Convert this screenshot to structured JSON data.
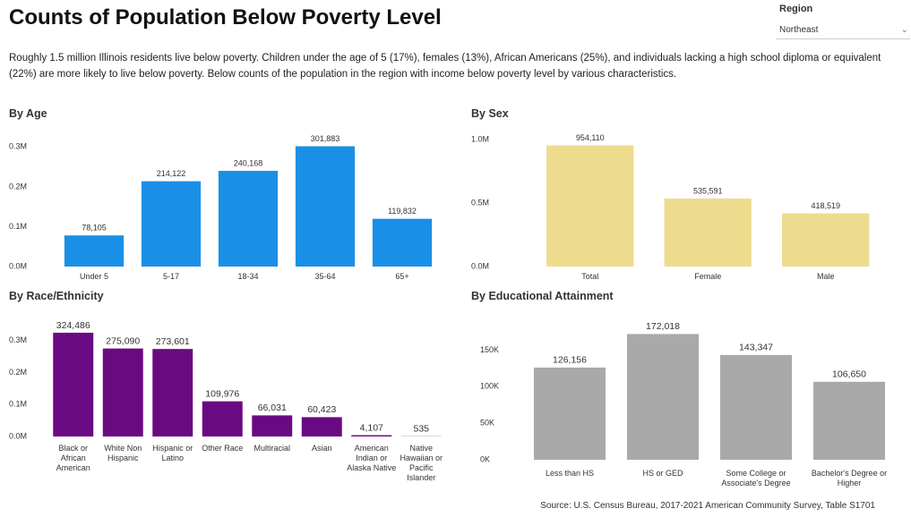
{
  "title": "Counts of Population Below Poverty Level",
  "description": "Roughly 1.5 million Illinois residents live below poverty. Children under the age of 5 (17%), females (13%), African Americans (25%), and individuals lacking a high school diploma or equivalent (22%) are more likely to live below poverty.  Below counts of the population in the region with income below poverty level by various characteristics.",
  "filter": {
    "label": "Region",
    "value": "Northeast"
  },
  "source": "Source: U.S. Census Bureau, 2017-2021 American Community Survey, Table S1701",
  "chart_data": [
    {
      "type": "bar",
      "title": "By Age",
      "categories": [
        "Under 5",
        "5-17",
        "18-34",
        "35-64",
        "65+"
      ],
      "values": [
        78105,
        214122,
        240168,
        301883,
        119832
      ],
      "value_labels": [
        "78,105",
        "214,122",
        "240,168",
        "301,883",
        "119,832"
      ],
      "color": "#1a8fe6",
      "ylim": [
        0,
        330000
      ],
      "yticks": [
        {
          "value": 0,
          "label": "0.0M"
        },
        {
          "value": 100000,
          "label": "0.1M"
        },
        {
          "value": 200000,
          "label": "0.2M"
        },
        {
          "value": 300000,
          "label": "0.3M"
        }
      ],
      "grid": false
    },
    {
      "type": "bar",
      "title": "By Sex",
      "categories": [
        "Total",
        "Female",
        "Male"
      ],
      "values": [
        954110,
        535591,
        418519
      ],
      "value_labels": [
        "954,110",
        "535,591",
        "418,519"
      ],
      "color": "#eedc8e",
      "ylim": [
        0,
        1000000
      ],
      "yticks": [
        {
          "value": 0,
          "label": "0.0M"
        },
        {
          "value": 500000,
          "label": "0.5M"
        },
        {
          "value": 1000000,
          "label": "1.0M"
        }
      ],
      "grid": false
    },
    {
      "type": "bar",
      "title": "By Race/Ethnicity",
      "categories": [
        "Black or African American",
        "White Non Hispanic",
        "Hispanic or Latino",
        "Other Race",
        "Multiracial",
        "Asian",
        "American Indian or Alaska Native",
        "Native Hawaiian or Pacific Islander"
      ],
      "values": [
        324486,
        275090,
        273601,
        109976,
        66031,
        60423,
        4107,
        535
      ],
      "value_labels": [
        "324,486",
        "275,090",
        "273,601",
        "109,976",
        "66,031",
        "60,423",
        "4,107",
        "535"
      ],
      "color": "#6a0a82",
      "ylim": [
        0,
        330000
      ],
      "yticks": [
        {
          "value": 0,
          "label": "0.0M"
        },
        {
          "value": 100000,
          "label": "0.1M"
        },
        {
          "value": 200000,
          "label": "0.2M"
        },
        {
          "value": 300000,
          "label": "0.3M"
        }
      ],
      "grid": false
    },
    {
      "type": "bar",
      "title": "By Educational Attainment",
      "categories": [
        "Less than HS",
        "HS or GED",
        "Some College or Associate's Degree",
        "Bachelor's Degree or Higher"
      ],
      "values": [
        126156,
        172018,
        143347,
        106650
      ],
      "value_labels": [
        "126,156",
        "172,018",
        "143,347",
        "106,650"
      ],
      "color": "#a9a9a9",
      "ylim": [
        0,
        175000
      ],
      "yticks": [
        {
          "value": 0,
          "label": "0K"
        },
        {
          "value": 50000,
          "label": "50K"
        },
        {
          "value": 100000,
          "label": "100K"
        },
        {
          "value": 150000,
          "label": "150K"
        }
      ],
      "grid": false
    }
  ]
}
